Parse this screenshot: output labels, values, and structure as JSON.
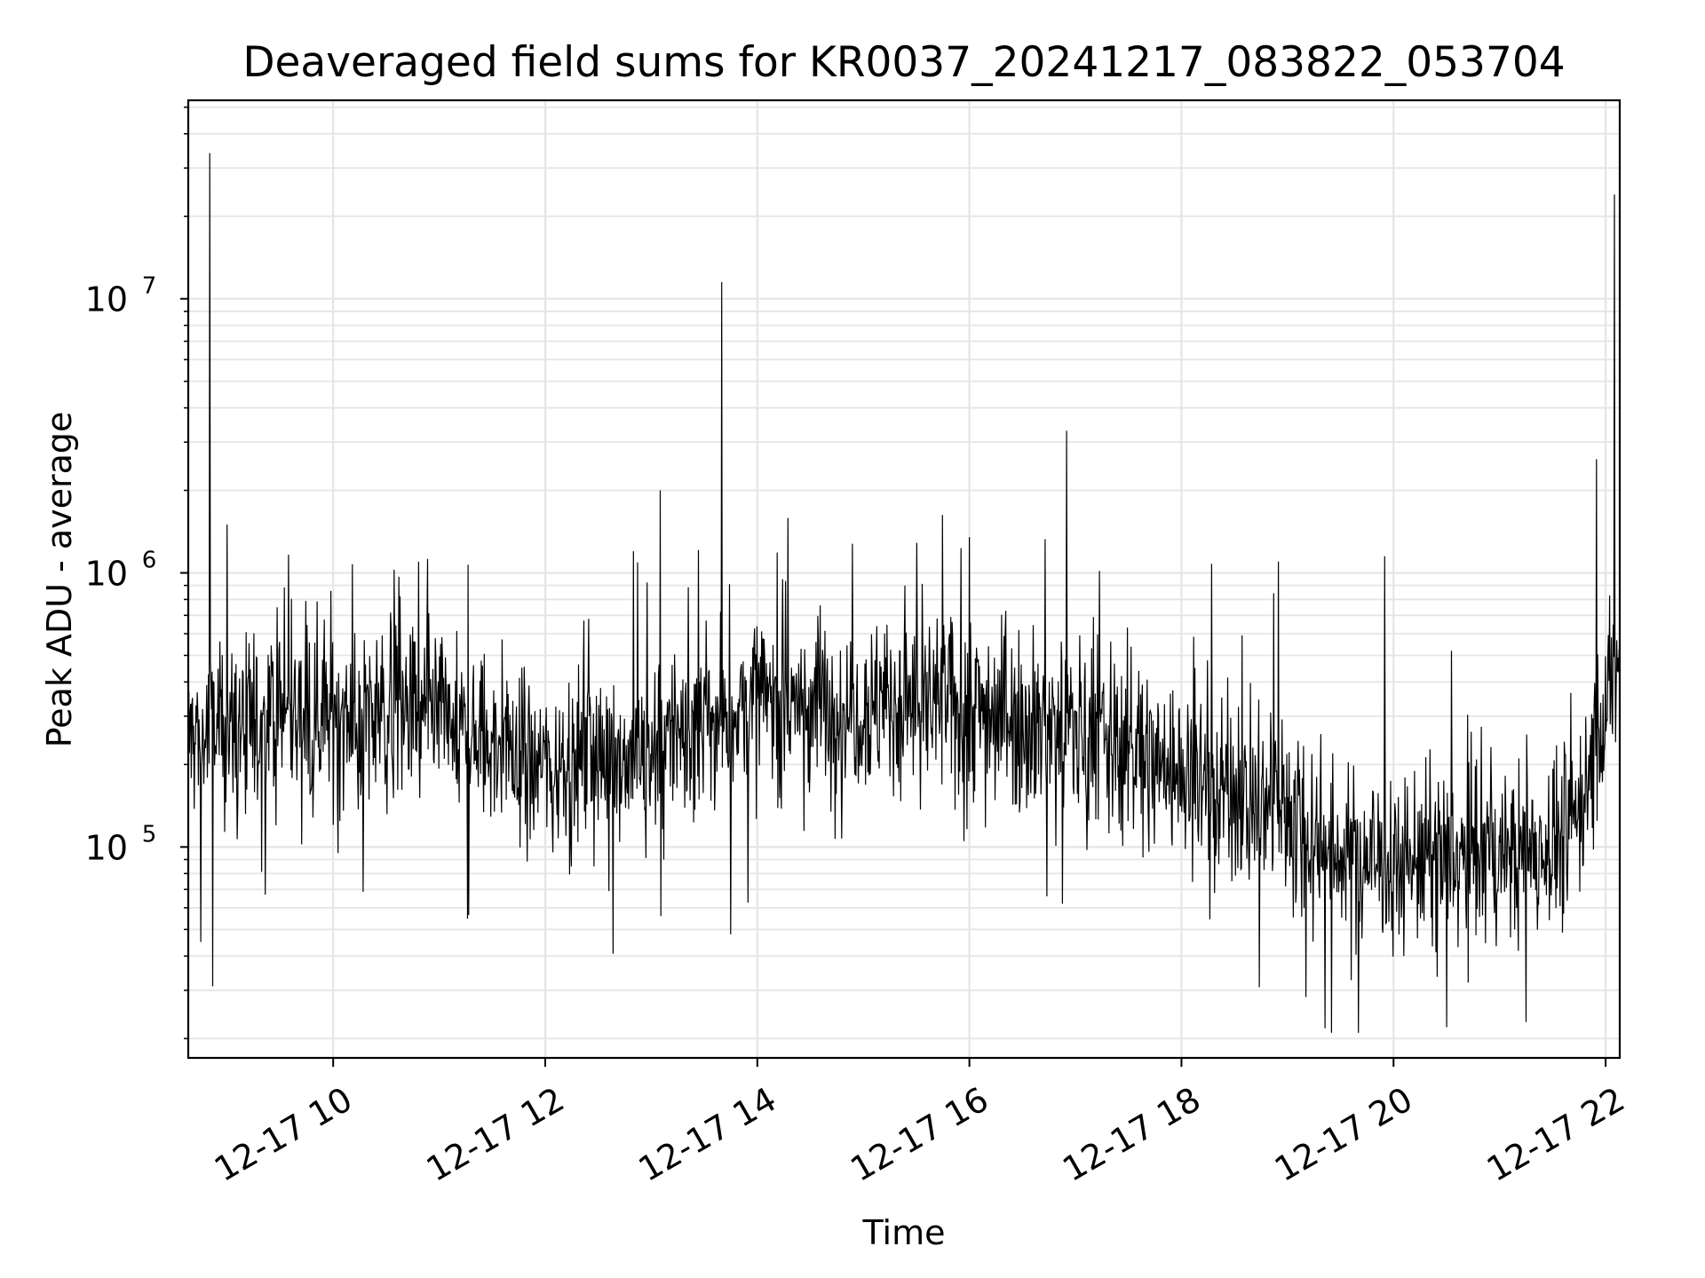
{
  "chart_data": {
    "type": "line",
    "title": "Deaveraged field sums for KR0037_20241217_083822_053704",
    "xlabel": "Time",
    "ylabel": "Peak ADU - average",
    "yscale": "log",
    "ylim": [
      17000,
      53000000
    ],
    "xlim": [
      "2024-12-17 08:38",
      "2024-12-17 22:08"
    ],
    "grid": true,
    "line_color": "#000000",
    "grid_color": "#e5e5e5",
    "x_ticks": [
      {
        "label": "12-17 10",
        "value": "2024-12-17 10:00"
      },
      {
        "label": "12-17 12",
        "value": "2024-12-17 12:00"
      },
      {
        "label": "12-17 14",
        "value": "2024-12-17 14:00"
      },
      {
        "label": "12-17 16",
        "value": "2024-12-17 16:00"
      },
      {
        "label": "12-17 18",
        "value": "2024-12-17 18:00"
      },
      {
        "label": "12-17 20",
        "value": "2024-12-17 20:00"
      },
      {
        "label": "12-17 22",
        "value": "2024-12-17 22:00"
      }
    ],
    "y_ticks": [
      {
        "base": "10",
        "exp": "5",
        "value": 100000
      },
      {
        "base": "10",
        "exp": "6",
        "value": 1000000
      },
      {
        "base": "10",
        "exp": "7",
        "value": 10000000
      }
    ],
    "series": [
      {
        "values_note": "trend",
        "trend": [
          {
            "x": "2024-12-17 08:38",
            "y": 250000
          },
          {
            "x": "2024-12-17 09:30",
            "y": 300000
          },
          {
            "x": "2024-12-17 10:00",
            "y": 320000
          },
          {
            "x": "2024-12-17 11:00",
            "y": 280000
          },
          {
            "x": "2024-12-17 12:00",
            "y": 200000
          },
          {
            "x": "2024-12-17 13:00",
            "y": 230000
          },
          {
            "x": "2024-12-17 14:00",
            "y": 340000
          },
          {
            "x": "2024-12-17 15:00",
            "y": 330000
          },
          {
            "x": "2024-12-17 16:00",
            "y": 330000
          },
          {
            "x": "2024-12-17 17:00",
            "y": 270000
          },
          {
            "x": "2024-12-17 18:00",
            "y": 190000
          },
          {
            "x": "2024-12-17 19:00",
            "y": 130000
          },
          {
            "x": "2024-12-17 19:30",
            "y": 95000
          },
          {
            "x": "2024-12-17 20:00",
            "y": 90000
          },
          {
            "x": "2024-12-17 21:00",
            "y": 90000
          },
          {
            "x": "2024-12-17 21:40",
            "y": 110000
          },
          {
            "x": "2024-12-17 22:08",
            "y": 480000
          }
        ],
        "peaks": [
          {
            "x": "2024-12-17 08:50",
            "y": 34000000
          },
          {
            "x": "2024-12-17 09:00",
            "y": 1500000
          },
          {
            "x": "2024-12-17 12:50",
            "y": 1200000
          },
          {
            "x": "2024-12-17 13:05",
            "y": 2000000
          },
          {
            "x": "2024-12-17 13:40",
            "y": 11500000
          },
          {
            "x": "2024-12-17 16:00",
            "y": 1350000
          },
          {
            "x": "2024-12-17 16:55",
            "y": 3300000
          },
          {
            "x": "2024-12-17 18:55",
            "y": 1100000
          },
          {
            "x": "2024-12-17 19:55",
            "y": 1150000
          },
          {
            "x": "2024-12-17 21:55",
            "y": 2600000
          },
          {
            "x": "2024-12-17 22:05",
            "y": 24000000
          }
        ],
        "dips": [
          {
            "x": "2024-12-17 08:45",
            "y": 45000
          },
          {
            "x": "2024-12-17 08:52",
            "y": 31000
          },
          {
            "x": "2024-12-17 13:45",
            "y": 48000
          },
          {
            "x": "2024-12-17 19:25",
            "y": 21000
          },
          {
            "x": "2024-12-17 19:40",
            "y": 21000
          },
          {
            "x": "2024-12-17 20:30",
            "y": 22000
          },
          {
            "x": "2024-12-17 21:15",
            "y": 23000
          }
        ]
      }
    ]
  }
}
